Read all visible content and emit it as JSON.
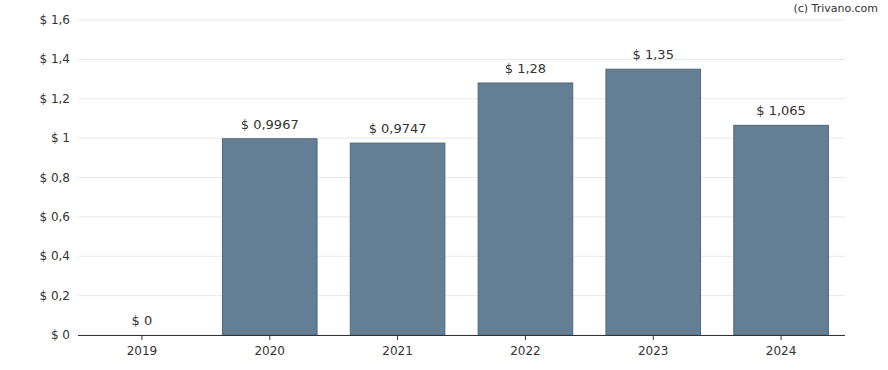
{
  "chart_data": {
    "type": "bar",
    "annotation": "(c) Trivano.com",
    "categories": [
      "2019",
      "2020",
      "2021",
      "2022",
      "2023",
      "2024"
    ],
    "values": [
      0,
      0.9967,
      0.9747,
      1.28,
      1.35,
      1.065
    ],
    "value_labels": [
      "$ 0",
      "$ 0,9967",
      "$ 0,9747",
      "$ 1,28",
      "$ 1,35",
      "$ 1,065"
    ],
    "color": "#647f93",
    "ylim": [
      0,
      1.6
    ],
    "yticks": [
      {
        "value": 0,
        "label": "$ 0"
      },
      {
        "value": 0.2,
        "label": "$ 0,2"
      },
      {
        "value": 0.4,
        "label": "$ 0,4"
      },
      {
        "value": 0.6,
        "label": "$ 0,6"
      },
      {
        "value": 0.8,
        "label": "$ 0,8"
      },
      {
        "value": 1,
        "label": "$ 1"
      },
      {
        "value": 1.2,
        "label": "$ 1,2"
      },
      {
        "value": 1.4,
        "label": "$ 1,4"
      },
      {
        "value": 1.6,
        "label": "$ 1,6"
      }
    ],
    "grid": true,
    "data_labels": true
  }
}
